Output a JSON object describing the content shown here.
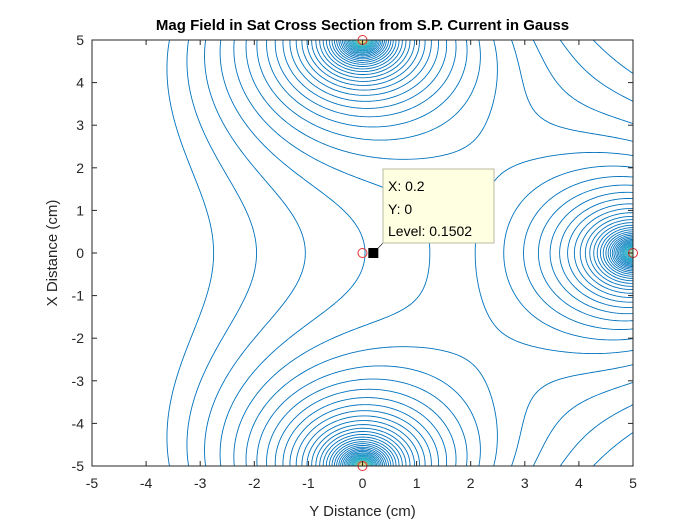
{
  "chart_data": {
    "type": "contour",
    "title": "Mag Field in Sat Cross Section from S.P. Current in Gauss",
    "xlabel": "Y Distance (cm)",
    "ylabel": "X Distance (cm)",
    "xlim": [
      -5,
      5
    ],
    "ylim": [
      -5,
      5
    ],
    "xticks": [
      -5,
      -4,
      -3,
      -2,
      -1,
      0,
      1,
      2,
      3,
      4,
      5
    ],
    "yticks": [
      -5,
      -4,
      -3,
      -2,
      -1,
      0,
      1,
      2,
      3,
      4,
      5
    ],
    "grid": false,
    "colormap": "parula",
    "line_color": "#0072bd",
    "hot_color": "#f2c72a",
    "markers": [
      {
        "x": 0,
        "y": 5,
        "shape": "circle",
        "color": "#e03030"
      },
      {
        "x": 0,
        "y": -5,
        "shape": "circle",
        "color": "#e03030"
      },
      {
        "x": 0,
        "y": 0,
        "shape": "circle",
        "color": "#e03030"
      },
      {
        "x": 5,
        "y": 0,
        "shape": "circle",
        "color": "#e03030"
      }
    ],
    "datatip": {
      "x": 0.2,
      "y": 0,
      "x_text": "X: 0.2",
      "y_text": "Y: 0",
      "level_text": "Level: 0.1502"
    }
  }
}
